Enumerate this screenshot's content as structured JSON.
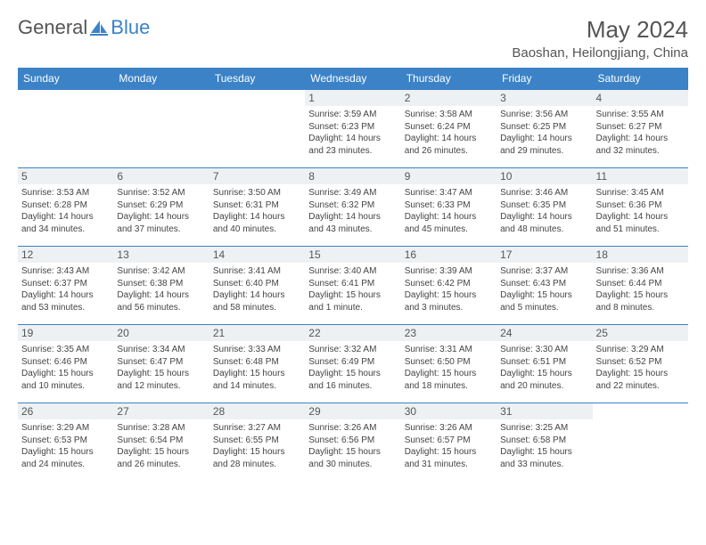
{
  "logo": {
    "word1": "General",
    "word2": "Blue"
  },
  "title": "May 2024",
  "location": "Baoshan, Heilongjiang, China",
  "colors": {
    "accent": "#3b82c7",
    "header_text": "#555",
    "daybg": "#eef1f3"
  },
  "typography": {
    "title_fontsize": 26,
    "location_fontsize": 15,
    "weekday_fontsize": 12,
    "cell_fontsize": 10
  },
  "weekdays": [
    "Sunday",
    "Monday",
    "Tuesday",
    "Wednesday",
    "Thursday",
    "Friday",
    "Saturday"
  ],
  "weeks": [
    [
      null,
      null,
      null,
      {
        "n": "1",
        "sr": "Sunrise: 3:59 AM",
        "ss": "Sunset: 6:23 PM",
        "dl": "Daylight: 14 hours and 23 minutes."
      },
      {
        "n": "2",
        "sr": "Sunrise: 3:58 AM",
        "ss": "Sunset: 6:24 PM",
        "dl": "Daylight: 14 hours and 26 minutes."
      },
      {
        "n": "3",
        "sr": "Sunrise: 3:56 AM",
        "ss": "Sunset: 6:25 PM",
        "dl": "Daylight: 14 hours and 29 minutes."
      },
      {
        "n": "4",
        "sr": "Sunrise: 3:55 AM",
        "ss": "Sunset: 6:27 PM",
        "dl": "Daylight: 14 hours and 32 minutes."
      }
    ],
    [
      {
        "n": "5",
        "sr": "Sunrise: 3:53 AM",
        "ss": "Sunset: 6:28 PM",
        "dl": "Daylight: 14 hours and 34 minutes."
      },
      {
        "n": "6",
        "sr": "Sunrise: 3:52 AM",
        "ss": "Sunset: 6:29 PM",
        "dl": "Daylight: 14 hours and 37 minutes."
      },
      {
        "n": "7",
        "sr": "Sunrise: 3:50 AM",
        "ss": "Sunset: 6:31 PM",
        "dl": "Daylight: 14 hours and 40 minutes."
      },
      {
        "n": "8",
        "sr": "Sunrise: 3:49 AM",
        "ss": "Sunset: 6:32 PM",
        "dl": "Daylight: 14 hours and 43 minutes."
      },
      {
        "n": "9",
        "sr": "Sunrise: 3:47 AM",
        "ss": "Sunset: 6:33 PM",
        "dl": "Daylight: 14 hours and 45 minutes."
      },
      {
        "n": "10",
        "sr": "Sunrise: 3:46 AM",
        "ss": "Sunset: 6:35 PM",
        "dl": "Daylight: 14 hours and 48 minutes."
      },
      {
        "n": "11",
        "sr": "Sunrise: 3:45 AM",
        "ss": "Sunset: 6:36 PM",
        "dl": "Daylight: 14 hours and 51 minutes."
      }
    ],
    [
      {
        "n": "12",
        "sr": "Sunrise: 3:43 AM",
        "ss": "Sunset: 6:37 PM",
        "dl": "Daylight: 14 hours and 53 minutes."
      },
      {
        "n": "13",
        "sr": "Sunrise: 3:42 AM",
        "ss": "Sunset: 6:38 PM",
        "dl": "Daylight: 14 hours and 56 minutes."
      },
      {
        "n": "14",
        "sr": "Sunrise: 3:41 AM",
        "ss": "Sunset: 6:40 PM",
        "dl": "Daylight: 14 hours and 58 minutes."
      },
      {
        "n": "15",
        "sr": "Sunrise: 3:40 AM",
        "ss": "Sunset: 6:41 PM",
        "dl": "Daylight: 15 hours and 1 minute."
      },
      {
        "n": "16",
        "sr": "Sunrise: 3:39 AM",
        "ss": "Sunset: 6:42 PM",
        "dl": "Daylight: 15 hours and 3 minutes."
      },
      {
        "n": "17",
        "sr": "Sunrise: 3:37 AM",
        "ss": "Sunset: 6:43 PM",
        "dl": "Daylight: 15 hours and 5 minutes."
      },
      {
        "n": "18",
        "sr": "Sunrise: 3:36 AM",
        "ss": "Sunset: 6:44 PM",
        "dl": "Daylight: 15 hours and 8 minutes."
      }
    ],
    [
      {
        "n": "19",
        "sr": "Sunrise: 3:35 AM",
        "ss": "Sunset: 6:46 PM",
        "dl": "Daylight: 15 hours and 10 minutes."
      },
      {
        "n": "20",
        "sr": "Sunrise: 3:34 AM",
        "ss": "Sunset: 6:47 PM",
        "dl": "Daylight: 15 hours and 12 minutes."
      },
      {
        "n": "21",
        "sr": "Sunrise: 3:33 AM",
        "ss": "Sunset: 6:48 PM",
        "dl": "Daylight: 15 hours and 14 minutes."
      },
      {
        "n": "22",
        "sr": "Sunrise: 3:32 AM",
        "ss": "Sunset: 6:49 PM",
        "dl": "Daylight: 15 hours and 16 minutes."
      },
      {
        "n": "23",
        "sr": "Sunrise: 3:31 AM",
        "ss": "Sunset: 6:50 PM",
        "dl": "Daylight: 15 hours and 18 minutes."
      },
      {
        "n": "24",
        "sr": "Sunrise: 3:30 AM",
        "ss": "Sunset: 6:51 PM",
        "dl": "Daylight: 15 hours and 20 minutes."
      },
      {
        "n": "25",
        "sr": "Sunrise: 3:29 AM",
        "ss": "Sunset: 6:52 PM",
        "dl": "Daylight: 15 hours and 22 minutes."
      }
    ],
    [
      {
        "n": "26",
        "sr": "Sunrise: 3:29 AM",
        "ss": "Sunset: 6:53 PM",
        "dl": "Daylight: 15 hours and 24 minutes."
      },
      {
        "n": "27",
        "sr": "Sunrise: 3:28 AM",
        "ss": "Sunset: 6:54 PM",
        "dl": "Daylight: 15 hours and 26 minutes."
      },
      {
        "n": "28",
        "sr": "Sunrise: 3:27 AM",
        "ss": "Sunset: 6:55 PM",
        "dl": "Daylight: 15 hours and 28 minutes."
      },
      {
        "n": "29",
        "sr": "Sunrise: 3:26 AM",
        "ss": "Sunset: 6:56 PM",
        "dl": "Daylight: 15 hours and 30 minutes."
      },
      {
        "n": "30",
        "sr": "Sunrise: 3:26 AM",
        "ss": "Sunset: 6:57 PM",
        "dl": "Daylight: 15 hours and 31 minutes."
      },
      {
        "n": "31",
        "sr": "Sunrise: 3:25 AM",
        "ss": "Sunset: 6:58 PM",
        "dl": "Daylight: 15 hours and 33 minutes."
      },
      null
    ]
  ]
}
